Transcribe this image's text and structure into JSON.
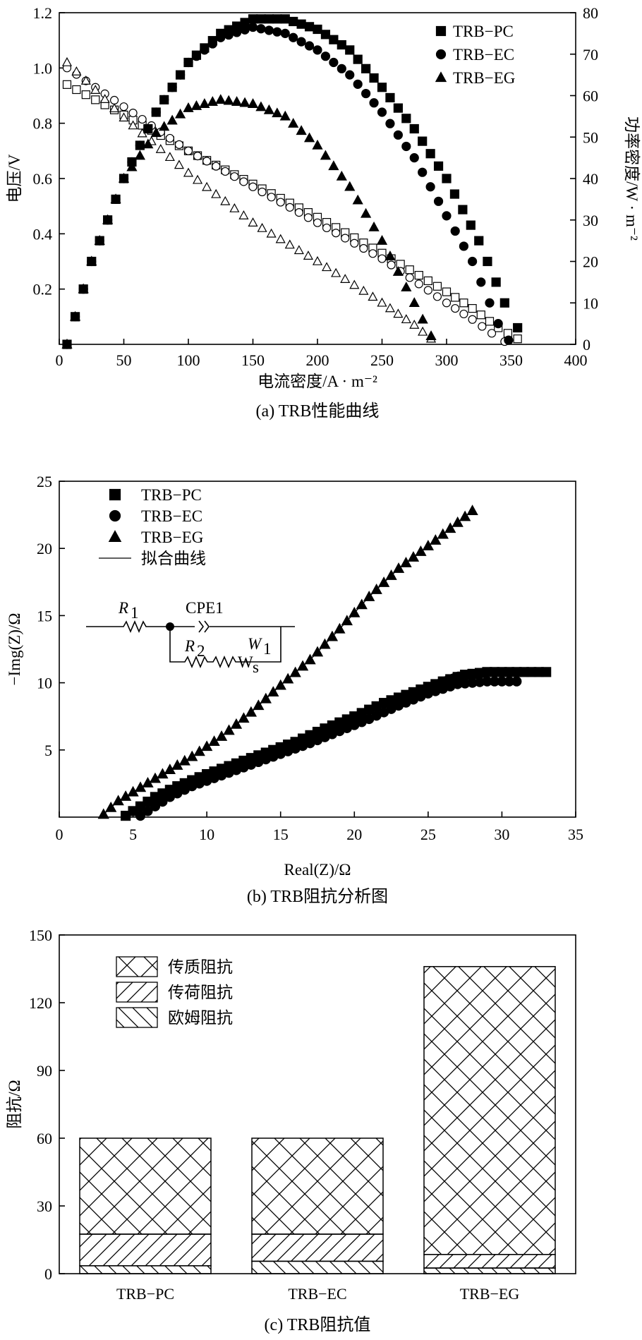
{
  "chart_data": [
    {
      "type": "line",
      "caption": "(a) TRB性能曲线",
      "xlabel": "电流密度/A · m⁻²",
      "ylabel_left": "电压/V",
      "ylabel_right": "功率密度/W · m⁻²",
      "xlim": [
        0,
        400
      ],
      "ylim_left": [
        0,
        1.2
      ],
      "ylim_right": [
        0,
        80
      ],
      "x_ticks": [
        "0",
        "50",
        "100",
        "150",
        "200",
        "250",
        "300",
        "350",
        "400"
      ],
      "y_left_ticks": [
        "0.2",
        "0.4",
        "0.6",
        "0.8",
        "1.0",
        "1.2"
      ],
      "y_right_ticks": [
        "0",
        "10",
        "20",
        "30",
        "40",
        "50",
        "60",
        "70",
        "80"
      ],
      "legend": [
        "TRB−PC",
        "TRB−EC",
        "TRB−EG"
      ],
      "voltage_series": [
        {
          "name": "TRB−PC",
          "marker": "square-open",
          "x": [
            6,
            50,
            100,
            150,
            200,
            250,
            300,
            320,
            340,
            355
          ],
          "y": [
            0.94,
            0.83,
            0.7,
            0.58,
            0.46,
            0.33,
            0.19,
            0.13,
            0.06,
            0.02
          ]
        },
        {
          "name": "TRB−EC",
          "marker": "circle-open",
          "x": [
            6,
            50,
            100,
            150,
            200,
            250,
            300,
            320,
            335,
            345
          ],
          "y": [
            1.0,
            0.86,
            0.7,
            0.57,
            0.44,
            0.31,
            0.15,
            0.09,
            0.04,
            0.01
          ]
        },
        {
          "name": "TRB−EG",
          "marker": "triangle-open",
          "x": [
            6,
            50,
            100,
            150,
            200,
            250,
            275,
            288
          ],
          "y": [
            1.02,
            0.82,
            0.62,
            0.44,
            0.3,
            0.15,
            0.07,
            0.02
          ]
        }
      ],
      "power_series": [
        {
          "name": "TRB−PC",
          "marker": "square",
          "x": [
            6,
            25,
            50,
            75,
            100,
            125,
            150,
            175,
            200,
            225,
            250,
            275,
            300,
            325,
            345,
            355
          ],
          "y": [
            0,
            20,
            40,
            56,
            68,
            75,
            78.5,
            78.5,
            76,
            71,
            62,
            52,
            40,
            25,
            10,
            4
          ]
        },
        {
          "name": "TRB−EC",
          "marker": "circle",
          "x": [
            6,
            25,
            50,
            75,
            100,
            125,
            150,
            175,
            200,
            225,
            250,
            275,
            300,
            320,
            340,
            348
          ],
          "y": [
            0,
            20,
            40,
            56,
            68,
            74,
            76.5,
            75,
            71,
            65,
            56,
            45,
            31,
            20,
            5,
            1
          ]
        },
        {
          "name": "TRB−EG",
          "marker": "triangle",
          "x": [
            6,
            25,
            50,
            75,
            100,
            125,
            150,
            175,
            200,
            225,
            250,
            275,
            288
          ],
          "y": [
            0,
            20,
            40,
            51,
            57,
            59,
            58,
            55,
            48,
            38,
            25,
            10,
            2
          ]
        }
      ]
    },
    {
      "type": "scatter",
      "caption": "(b) TRB阻抗分析图",
      "xlabel": "Real(Z)/Ω",
      "ylabel": "−Img(Z)/Ω",
      "xlim": [
        0,
        35
      ],
      "ylim": [
        0,
        25
      ],
      "x_ticks": [
        "0",
        "5",
        "10",
        "15",
        "20",
        "25",
        "30",
        "35"
      ],
      "y_ticks": [
        "5",
        "10",
        "15",
        "20",
        "25"
      ],
      "legend": [
        "TRB−PC",
        "TRB−EC",
        "TRB−EG",
        "拟合曲线"
      ],
      "circuit": {
        "r1": "R",
        "r1_sub": "1",
        "cpe": "CPE1",
        "r2": "R",
        "r2_sub": "2",
        "w": "W",
        "w_sub": "1",
        "ws": "W",
        "ws_sub": "s"
      },
      "series": [
        {
          "name": "TRB−PC",
          "marker": "square",
          "x": [
            4.5,
            5.5,
            6.5,
            8,
            10,
            12,
            14,
            16,
            18,
            20,
            22,
            24,
            26,
            27.5,
            29,
            31,
            33
          ],
          "y": [
            0.1,
            0.8,
            1.5,
            2.3,
            3.2,
            4,
            4.8,
            5.6,
            6.6,
            7.5,
            8.5,
            9.3,
            10.1,
            10.6,
            10.8,
            10.8,
            10.8
          ]
        },
        {
          "name": "TRB−EC",
          "marker": "circle",
          "x": [
            5.5,
            6.5,
            7.5,
            9,
            11,
            13,
            15,
            17,
            19,
            21,
            23,
            25,
            27,
            29,
            31
          ],
          "y": [
            0.1,
            0.8,
            1.5,
            2.3,
            3.1,
            3.9,
            4.7,
            5.5,
            6.4,
            7.3,
            8.3,
            9.2,
            9.9,
            10.1,
            10.1
          ]
        },
        {
          "name": "TRB−EG",
          "marker": "triangle",
          "x": [
            3,
            4,
            5.5,
            7,
            9,
            11,
            13,
            15,
            17,
            19,
            21,
            23,
            25.5,
            28
          ],
          "y": [
            0.2,
            1.2,
            2.2,
            3.2,
            4.5,
            6,
            7.8,
            9.8,
            11.7,
            14,
            16.4,
            18.5,
            20.6,
            22.8
          ]
        }
      ],
      "fit_series": [
        {
          "x": [
            4.5,
            6,
            8,
            10,
            12,
            14,
            16,
            18,
            20,
            22,
            24,
            26,
            27,
            30,
            31
          ],
          "y": [
            0.2,
            1.2,
            2.3,
            3.2,
            4.1,
            4.9,
            5.7,
            6.6,
            7.6,
            8.6,
            9.5,
            10.4,
            10.8,
            10.8,
            10.8
          ]
        },
        {
          "x": [
            5.5,
            7,
            9,
            11,
            13,
            15,
            17,
            19,
            21,
            23,
            25,
            27,
            29,
            31
          ],
          "y": [
            0.2,
            1.2,
            2.2,
            3,
            3.8,
            4.6,
            5.4,
            6.3,
            7.2,
            8.2,
            9.2,
            10,
            10.1,
            10.1
          ]
        },
        {
          "x": [
            3,
            4,
            5.5,
            7,
            9,
            11,
            13,
            15,
            17,
            19,
            21,
            23,
            25.5,
            28
          ],
          "y": [
            0.2,
            1.2,
            2.2,
            3.2,
            4.5,
            6,
            7.8,
            9.8,
            11.7,
            14,
            16.4,
            18.5,
            20.6,
            22.8
          ]
        }
      ]
    },
    {
      "type": "bar",
      "caption": "(c) TRB阻抗值",
      "ylabel": "阻抗/Ω",
      "ylim": [
        0,
        150
      ],
      "y_ticks": [
        "0",
        "30",
        "60",
        "90",
        "120",
        "150"
      ],
      "categories": [
        "TRB−PC",
        "TRB−EC",
        "TRB−EG"
      ],
      "stacked": true,
      "legend": [
        "传质阻抗",
        "传荷阻抗",
        "欧姆阻抗"
      ],
      "series": [
        {
          "name": "欧姆阻抗",
          "pattern": "backslash",
          "values": [
            3.5,
            5.5,
            2.5
          ]
        },
        {
          "name": "传荷阻抗",
          "pattern": "slash",
          "values": [
            14,
            12,
            6
          ]
        },
        {
          "name": "传质阻抗",
          "pattern": "crosshatch",
          "values": [
            42.5,
            42.5,
            127.5
          ]
        }
      ]
    }
  ]
}
